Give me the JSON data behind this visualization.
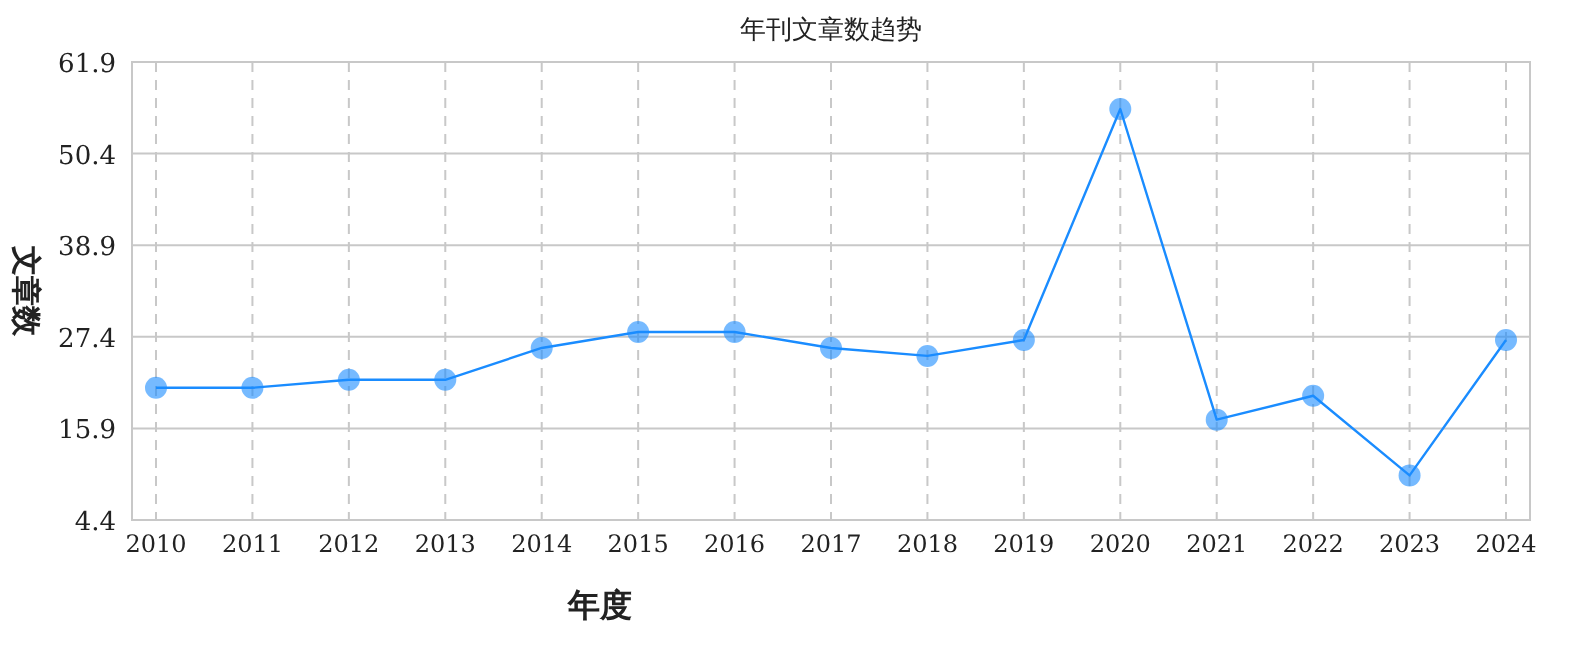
{
  "chart_data": {
    "type": "line",
    "title": "年刊文章数趋势",
    "xlabel": "年度",
    "ylabel": "文章数",
    "categories": [
      "2010",
      "2011",
      "2012",
      "2013",
      "2014",
      "2015",
      "2016",
      "2017",
      "2018",
      "2019",
      "2020",
      "2021",
      "2022",
      "2023",
      "2024"
    ],
    "series": [
      {
        "color": "#1a8cff",
        "values": [
          21,
          21,
          22,
          22,
          26,
          28,
          28,
          26,
          25,
          27,
          56,
          17,
          20,
          10,
          27
        ]
      }
    ],
    "ylim": [
      4.4,
      61.9
    ],
    "yticks": [
      4.4,
      15.9,
      27.4,
      38.9,
      50.4,
      61.9
    ],
    "grid": true,
    "marker": "circle",
    "line_style": "solid"
  }
}
